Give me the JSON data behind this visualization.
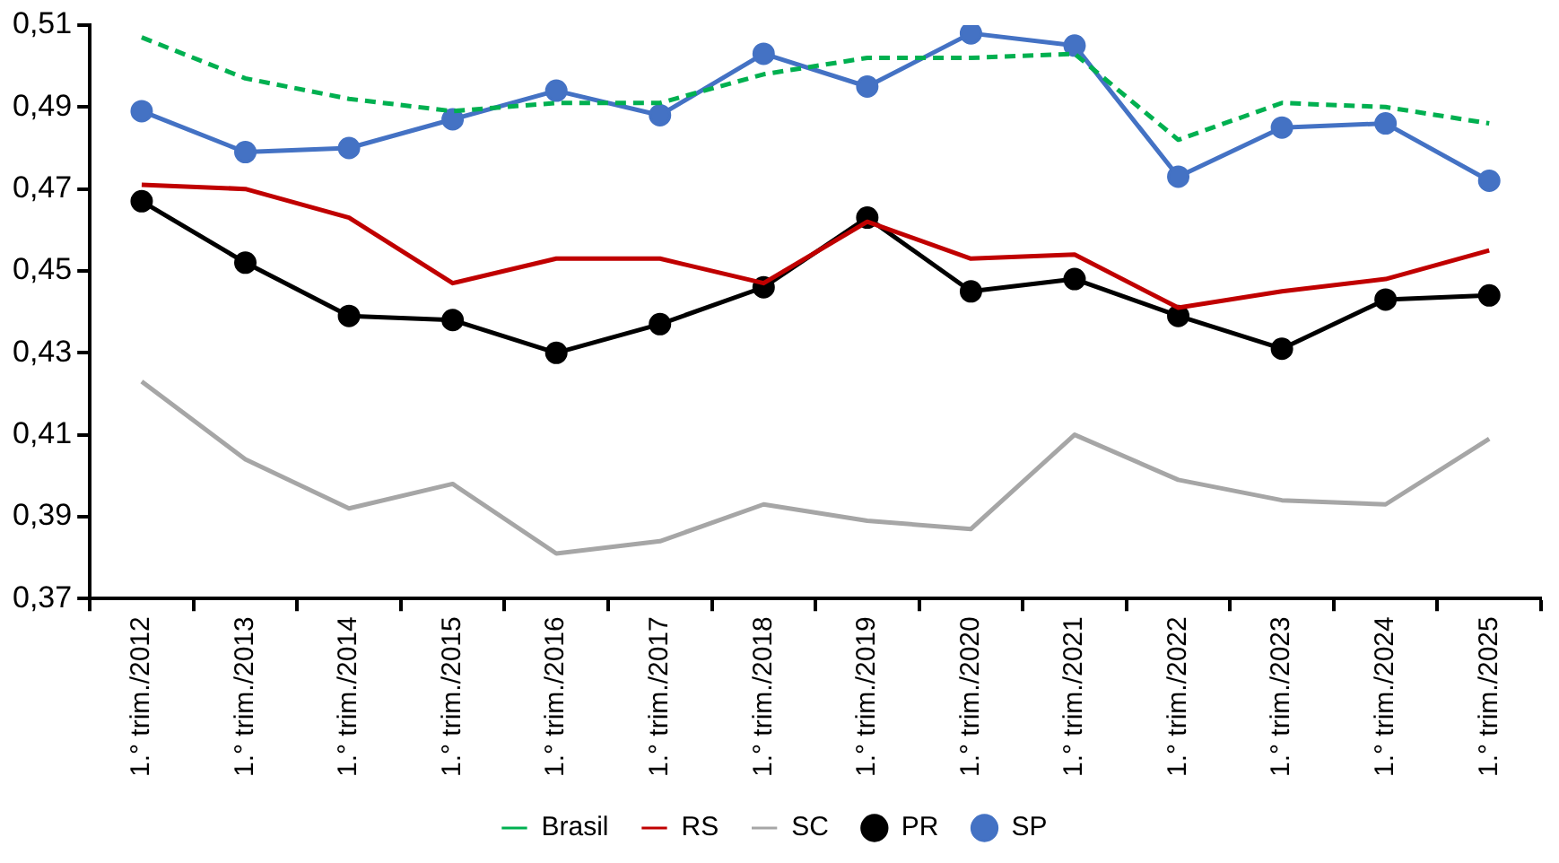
{
  "chart_data": {
    "type": "line",
    "categories": [
      "1.° trim./2012",
      "1.° trim./2013",
      "1.° trim./2014",
      "1.° trim./2015",
      "1.° trim./2016",
      "1.° trim./2017",
      "1.° trim./2018",
      "1.° trim./2019",
      "1.° trim./2020",
      "1.° trim./2021",
      "1.° trim./2022",
      "1.° trim./2023",
      "1.° trim./2024",
      "1.° trim./2025"
    ],
    "series": [
      {
        "name": "Brasil",
        "color": "#00b050",
        "line_style": "dashed",
        "marker": "none",
        "values": [
          0.507,
          0.497,
          0.492,
          0.489,
          0.491,
          0.491,
          0.498,
          0.502,
          0.502,
          0.503,
          0.482,
          0.491,
          0.49,
          0.486
        ]
      },
      {
        "name": "RS",
        "color": "#c00000",
        "marker": "none",
        "values": [
          0.471,
          0.47,
          0.463,
          0.447,
          0.453,
          0.453,
          0.447,
          0.462,
          0.453,
          0.454,
          0.441,
          0.445,
          0.448,
          0.455
        ]
      },
      {
        "name": "SC",
        "color": "#a6a6a6",
        "marker": "none",
        "values": [
          0.423,
          0.404,
          0.392,
          0.398,
          0.381,
          0.384,
          0.393,
          0.389,
          0.387,
          0.41,
          0.399,
          0.394,
          0.393,
          0.409
        ]
      },
      {
        "name": "PR",
        "color": "#000000",
        "marker": "circle",
        "values": [
          0.467,
          0.452,
          0.439,
          0.438,
          0.43,
          0.437,
          0.446,
          0.463,
          0.445,
          0.448,
          0.439,
          0.431,
          0.443,
          0.444
        ]
      },
      {
        "name": "SP",
        "color": "#4472c4",
        "marker": "circle",
        "values": [
          0.489,
          0.479,
          0.48,
          0.487,
          0.494,
          0.488,
          0.503,
          0.495,
          0.508,
          0.505,
          0.473,
          0.485,
          0.486,
          0.472
        ]
      }
    ],
    "ylim": [
      0.37,
      0.51
    ],
    "yticks": [
      {
        "value": 0.37,
        "label": "0,37"
      },
      {
        "value": 0.39,
        "label": "0,39"
      },
      {
        "value": 0.41,
        "label": "0,41"
      },
      {
        "value": 0.43,
        "label": "0,43"
      },
      {
        "value": 0.45,
        "label": "0,45"
      },
      {
        "value": 0.47,
        "label": "0,47"
      },
      {
        "value": 0.49,
        "label": "0,49"
      },
      {
        "value": 0.51,
        "label": "0,51"
      }
    ],
    "grid": false,
    "legend": "bottom",
    "line_style": "solid"
  }
}
